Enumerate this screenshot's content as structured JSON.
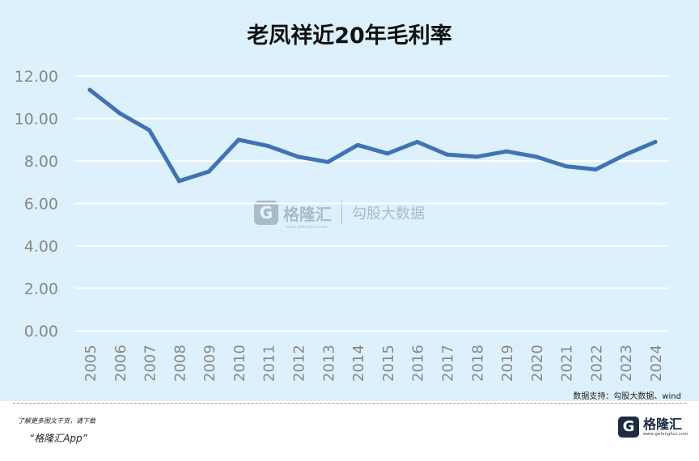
{
  "title": "老凤祥近20年毛利率",
  "source": "数据支持：勾股大数据、wind",
  "watermark": {
    "brand": "格隆汇",
    "url": "www.gelonghui.com",
    "partner": "勾股大数据",
    "icon": "gelonghui-logo-icon"
  },
  "footer": {
    "note": "了解更多图文干货，请下载",
    "app": "“格隆汇App”",
    "logo_text": "格隆汇",
    "logo_url": "www.gelonghui.com",
    "logo_icon": "gelonghui-logo-icon"
  },
  "colors": {
    "line": "#3f73b6",
    "grid": "#ffffff",
    "background": "#dcf1fb",
    "tick_text": "#888888"
  },
  "chart_data": {
    "type": "line",
    "title": "老凤祥近20年毛利率",
    "xlabel": "",
    "ylabel": "",
    "categories": [
      "2005",
      "2006",
      "2007",
      "2008",
      "2009",
      "2010",
      "2011",
      "2012",
      "2013",
      "2014",
      "2015",
      "2016",
      "2017",
      "2018",
      "2019",
      "2020",
      "2021",
      "2022",
      "2023",
      "2024"
    ],
    "series": [
      {
        "values": [
          11.35,
          10.25,
          9.45,
          7.05,
          7.5,
          9.0,
          8.7,
          8.2,
          7.95,
          8.75,
          8.35,
          8.9,
          8.3,
          8.2,
          8.45,
          8.2,
          7.75,
          7.6,
          8.3,
          8.9
        ]
      }
    ],
    "yticks": [
      "0.00",
      "2.00",
      "4.00",
      "6.00",
      "8.00",
      "10.00",
      "12.00"
    ],
    "ylim": [
      0,
      12
    ],
    "grid": true,
    "legend": "none"
  }
}
